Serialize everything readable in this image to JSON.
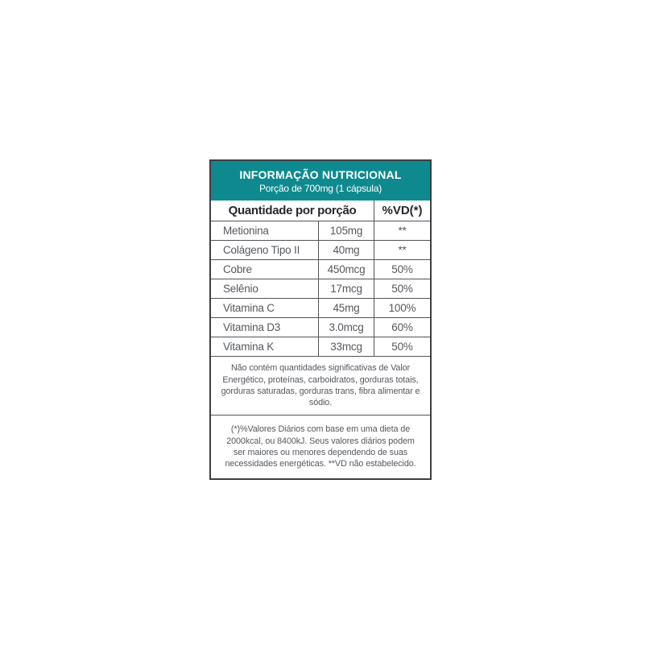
{
  "label": {
    "header": {
      "title": "INFORMAÇÃO NUTRICIONAL",
      "subtitle": "Porção de 700mg (1 cápsula)",
      "bg_color": "#0e8a8f",
      "text_color": "#ffffff"
    },
    "columns": {
      "quantity_header": "Quantidade por porção",
      "vd_header": "%VD(*)"
    },
    "rows": [
      {
        "name": "Metionina",
        "amount": "105mg",
        "vd": "**"
      },
      {
        "name": "Colágeno Tipo II",
        "amount": "40mg",
        "vd": "**"
      },
      {
        "name": "Cobre",
        "amount": "450mcg",
        "vd": "50%"
      },
      {
        "name": "Selênio",
        "amount": "17mcg",
        "vd": "50%"
      },
      {
        "name": "Vitamina C",
        "amount": "45mg",
        "vd": "100%"
      },
      {
        "name": "Vitamina D3",
        "amount": "3.0mcg",
        "vd": "60%"
      },
      {
        "name": "Vitamina K",
        "amount": "33mcg",
        "vd": "50%"
      }
    ],
    "notes": [
      {
        "lines": [
          "Não contém quantidades significativas de Valor",
          "Energético, proteínas, carboidratos, gorduras totais,",
          "gorduras saturadas, gorduras trans, fibra alimentar e",
          "sódio."
        ]
      },
      {
        "lines": [
          "(*)%Valores Diários com base em uma dieta de",
          "2000kcal, ou 8400kJ. Seus valores diários podem",
          "ser maiores ou menores dependendo de suas",
          "necessidades energéticas. **VD não estabelecido."
        ]
      }
    ],
    "colors": {
      "border": "#3d4044",
      "inner_lines": "#515459",
      "body_text": "#55585d",
      "header_text": "#26282c"
    }
  }
}
